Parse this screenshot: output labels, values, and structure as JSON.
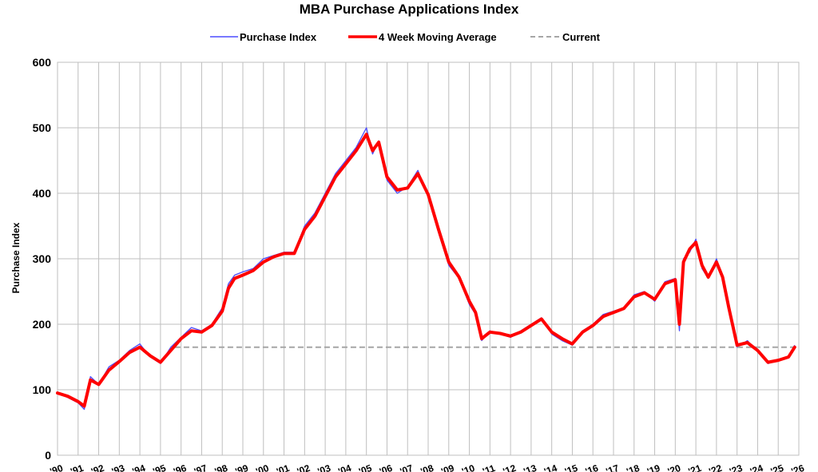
{
  "chart_data": {
    "type": "line",
    "title": "MBA Purchase Applications Index",
    "xlabel": "",
    "ylabel": "Purchase Index",
    "ylim": [
      0,
      600
    ],
    "yticks": [
      0,
      100,
      200,
      300,
      400,
      500,
      600
    ],
    "xlim": [
      1990,
      2026
    ],
    "xtick_labels": [
      "'90",
      "'91",
      "'92",
      "'93",
      "'94",
      "'95",
      "'96",
      "'97",
      "'98",
      "'99",
      "'00",
      "'01",
      "'02",
      "'03",
      "'04",
      "'05",
      "'06",
      "'07",
      "'08",
      "'09",
      "'10",
      "'11",
      "'12",
      "'13",
      "'14",
      "'15",
      "'16",
      "'17",
      "'18",
      "'19",
      "'20",
      "'21",
      "'22",
      "'23",
      "'24",
      "'25",
      "'26"
    ],
    "grid": true,
    "legend_position": "top-center",
    "series": [
      {
        "name": "Purchase Index",
        "color": "#4b4bff",
        "x": [
          1990.0,
          1990.5,
          1991.0,
          1991.3,
          1991.6,
          1992.0,
          1992.5,
          1993.0,
          1993.5,
          1994.0,
          1994.5,
          1995.0,
          1995.5,
          1996.0,
          1996.5,
          1997.0,
          1997.5,
          1998.0,
          1998.3,
          1998.6,
          1999.0,
          1999.5,
          2000.0,
          2000.5,
          2001.0,
          2001.5,
          2002.0,
          2002.5,
          2003.0,
          2003.5,
          2004.0,
          2004.5,
          2005.0,
          2005.3,
          2005.6,
          2006.0,
          2006.5,
          2007.0,
          2007.5,
          2008.0,
          2008.5,
          2009.0,
          2009.5,
          2010.0,
          2010.3,
          2010.6,
          2011.0,
          2011.5,
          2012.0,
          2012.5,
          2013.0,
          2013.5,
          2014.0,
          2014.5,
          2015.0,
          2015.5,
          2016.0,
          2016.5,
          2017.0,
          2017.5,
          2018.0,
          2018.5,
          2019.0,
          2019.5,
          2020.0,
          2020.2,
          2020.4,
          2020.7,
          2021.0,
          2021.3,
          2021.6,
          2022.0,
          2022.3,
          2022.6,
          2023.0,
          2023.5,
          2024.0,
          2024.5,
          2025.0,
          2025.5,
          2025.8
        ],
        "values": [
          95,
          88,
          80,
          70,
          120,
          108,
          135,
          145,
          160,
          170,
          150,
          140,
          165,
          180,
          195,
          190,
          200,
          225,
          262,
          275,
          280,
          285,
          300,
          305,
          310,
          310,
          350,
          370,
          400,
          430,
          450,
          470,
          500,
          460,
          480,
          420,
          400,
          410,
          435,
          395,
          340,
          290,
          270,
          230,
          215,
          175,
          190,
          185,
          180,
          190,
          200,
          210,
          185,
          175,
          168,
          190,
          200,
          215,
          220,
          225,
          245,
          250,
          235,
          265,
          270,
          190,
          300,
          310,
          330,
          285,
          270,
          300,
          270,
          220,
          165,
          175,
          158,
          140,
          145,
          150,
          168
        ]
      },
      {
        "name": "4 Week Moving Average",
        "color": "#ff0000",
        "x": [
          1990.0,
          1990.5,
          1991.0,
          1991.3,
          1991.6,
          1992.0,
          1992.5,
          1993.0,
          1993.5,
          1994.0,
          1994.5,
          1995.0,
          1995.5,
          1996.0,
          1996.5,
          1997.0,
          1997.5,
          1998.0,
          1998.3,
          1998.6,
          1999.0,
          1999.5,
          2000.0,
          2000.5,
          2001.0,
          2001.5,
          2002.0,
          2002.5,
          2003.0,
          2003.5,
          2004.0,
          2004.5,
          2005.0,
          2005.3,
          2005.6,
          2006.0,
          2006.5,
          2007.0,
          2007.5,
          2008.0,
          2008.5,
          2009.0,
          2009.5,
          2010.0,
          2010.3,
          2010.6,
          2011.0,
          2011.5,
          2012.0,
          2012.5,
          2013.0,
          2013.5,
          2014.0,
          2014.5,
          2015.0,
          2015.5,
          2016.0,
          2016.5,
          2017.0,
          2017.5,
          2018.0,
          2018.5,
          2019.0,
          2019.5,
          2020.0,
          2020.2,
          2020.4,
          2020.7,
          2021.0,
          2021.3,
          2021.6,
          2022.0,
          2022.3,
          2022.6,
          2023.0,
          2023.5,
          2024.0,
          2024.5,
          2025.0,
          2025.5,
          2025.8
        ],
        "values": [
          95,
          90,
          82,
          75,
          115,
          108,
          130,
          143,
          157,
          165,
          152,
          142,
          160,
          178,
          190,
          188,
          198,
          220,
          255,
          270,
          275,
          282,
          295,
          303,
          308,
          308,
          345,
          365,
          395,
          425,
          445,
          465,
          490,
          465,
          478,
          425,
          405,
          408,
          430,
          398,
          345,
          295,
          272,
          235,
          218,
          178,
          188,
          186,
          182,
          188,
          198,
          208,
          188,
          178,
          170,
          188,
          198,
          212,
          218,
          224,
          242,
          248,
          238,
          262,
          268,
          200,
          295,
          315,
          325,
          290,
          272,
          295,
          272,
          225,
          168,
          172,
          160,
          142,
          145,
          150,
          165
        ]
      },
      {
        "name": "Current",
        "color": "#a6a6a6",
        "values": [
          165
        ]
      }
    ]
  }
}
